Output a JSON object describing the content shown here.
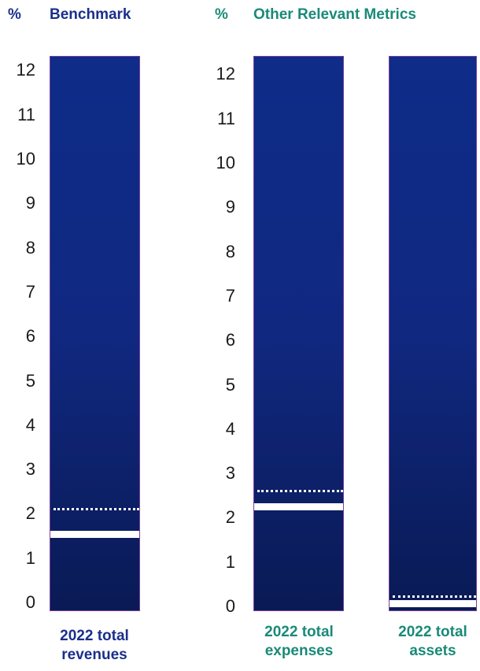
{
  "colors": {
    "benchmark": "#1a2f8a",
    "other": "#1a8a78"
  },
  "headers": {
    "benchmark_pct": "%",
    "benchmark_title": "Benchmark",
    "other_pct": "%",
    "other_title": "Other Relevant Metrics"
  },
  "chart_data": [
    {
      "type": "bar",
      "title": "Benchmark",
      "ylabel": "%",
      "ylim": [
        0,
        12.4
      ],
      "yticks": [
        "0",
        "1",
        "2",
        "3",
        "4",
        "5",
        "6",
        "7",
        "8",
        "9",
        "10",
        "11",
        "12"
      ],
      "categories": [
        "2022 total revenues"
      ],
      "category_label": {
        "line1": "2022 total",
        "line2": "revenues"
      },
      "series": [
        {
          "name": "solid marker",
          "values": [
            1.75
          ]
        },
        {
          "name": "dotted marker",
          "values": [
            2.3
          ]
        }
      ]
    },
    {
      "type": "bar",
      "title": "Other Relevant Metrics",
      "ylabel": "%",
      "ylim": [
        0,
        12.4
      ],
      "yticks": [
        "0",
        "1",
        "2",
        "3",
        "4",
        "5",
        "6",
        "7",
        "8",
        "9",
        "10",
        "11",
        "12"
      ],
      "categories": [
        "2022 total expenses",
        "2022 total assets"
      ],
      "category_labels": [
        {
          "line1": "2022 total",
          "line2": "expenses"
        },
        {
          "line1": "2022 total",
          "line2": "assets"
        }
      ],
      "series": [
        {
          "name": "solid marker",
          "values": [
            2.35,
            0.2
          ]
        },
        {
          "name": "dotted marker",
          "values": [
            2.7,
            0.35
          ]
        }
      ]
    }
  ]
}
